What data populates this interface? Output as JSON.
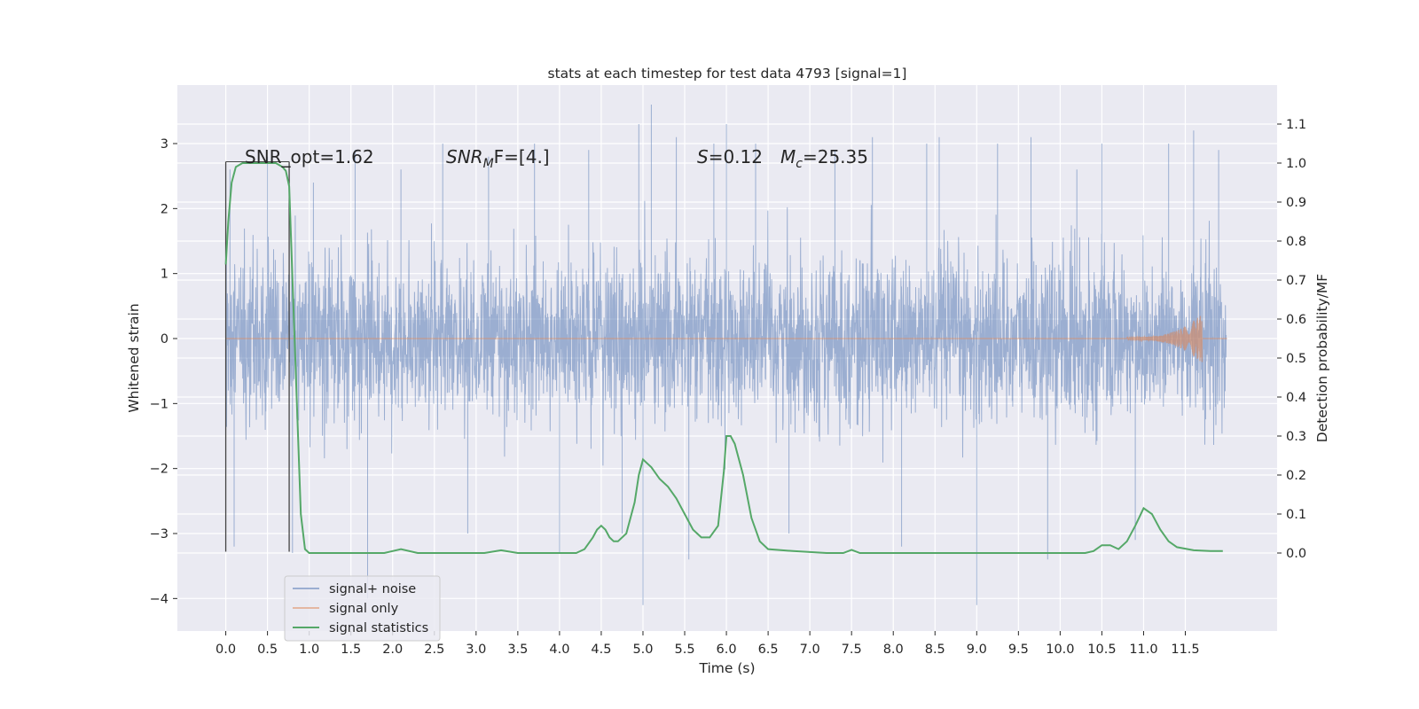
{
  "chart_data": {
    "type": "line",
    "title": "stats at each timestep for test data 4793 [signal=1]",
    "xlabel": "Time (s)",
    "ylabel": "Whitened strain",
    "y2label": "Detection probability/MF",
    "xlim": [
      -0.58,
      12.6
    ],
    "ylim": [
      -4.5,
      3.9
    ],
    "y2lim": [
      -0.2,
      1.2
    ],
    "xticks": [
      0.0,
      0.5,
      1.0,
      1.5,
      2.0,
      2.5,
      3.0,
      3.5,
      4.0,
      4.5,
      5.0,
      5.5,
      6.0,
      6.5,
      7.0,
      7.5,
      8.0,
      8.5,
      9.0,
      9.5,
      10.0,
      10.5,
      11.0,
      11.5
    ],
    "xtick_labels": [
      "0.0",
      "0.5",
      "1.0",
      "1.5",
      "2.0",
      "2.5",
      "3.0",
      "3.5",
      "4.0",
      "4.5",
      "5.0",
      "5.5",
      "6.0",
      "6.5",
      "7.0",
      "7.5",
      "8.0",
      "8.5",
      "9.0",
      "9.5",
      "10.0",
      "10.5",
      "11.0",
      "11.5"
    ],
    "yticks": [
      -4,
      -3,
      -2,
      -1,
      0,
      1,
      2,
      3
    ],
    "ytick_labels": [
      "−4",
      "−3",
      "−2",
      "−1",
      "0",
      "1",
      "2",
      "3"
    ],
    "y2ticks": [
      0.0,
      0.1,
      0.2,
      0.3,
      0.4,
      0.5,
      0.6,
      0.7,
      0.8,
      0.9,
      1.0,
      1.1
    ],
    "y2tick_labels": [
      "0.0",
      "0.1",
      "0.2",
      "0.3",
      "0.4",
      "0.5",
      "0.6",
      "0.7",
      "0.8",
      "0.9",
      "1.0",
      "1.1"
    ],
    "grid": true,
    "legend_position": "lower-left",
    "background_color": "#eaeaf2",
    "annotations": {
      "snr_opt": "SNR_opt=1.62",
      "snr_mf_prefix": "SNR",
      "snr_mf_sub": "M",
      "snr_mf_suffix": "F=[4.]",
      "s_prefix": "S",
      "s_value": "=0.12",
      "mc_prefix": "M",
      "mc_sub": "c",
      "mc_value": "=25.35"
    },
    "series": [
      {
        "name": "signal+ noise",
        "color": "#4c72b0",
        "axis": "left",
        "description": "dense noisy strain time series, mostly within ±1.5 with spikes to about ±3.5",
        "envelope_peaks": [
          [
            0.05,
            2.6
          ],
          [
            0.1,
            -3.2
          ],
          [
            0.5,
            2.8
          ],
          [
            0.8,
            -3.3
          ],
          [
            1.05,
            2.4
          ],
          [
            1.55,
            2.9
          ],
          [
            1.7,
            -4.0
          ],
          [
            2.1,
            2.6
          ],
          [
            2.6,
            3.0
          ],
          [
            2.9,
            -3.0
          ],
          [
            3.15,
            2.8
          ],
          [
            3.7,
            3.0
          ],
          [
            4.0,
            -3.3
          ],
          [
            4.35,
            2.9
          ],
          [
            4.75,
            -3.0
          ],
          [
            4.95,
            3.3
          ],
          [
            5.0,
            -4.1
          ],
          [
            5.1,
            3.6
          ],
          [
            5.4,
            3.1
          ],
          [
            5.55,
            -3.4
          ],
          [
            5.85,
            3.0
          ],
          [
            6.0,
            3.3
          ],
          [
            6.35,
            3.0
          ],
          [
            6.75,
            -3.0
          ],
          [
            7.3,
            2.9
          ],
          [
            7.75,
            3.1
          ],
          [
            8.1,
            -3.2
          ],
          [
            8.4,
            3.0
          ],
          [
            8.55,
            3.1
          ],
          [
            9.0,
            -4.1
          ],
          [
            9.25,
            3.0
          ],
          [
            9.65,
            3.1
          ],
          [
            9.85,
            -3.4
          ],
          [
            10.2,
            2.6
          ],
          [
            10.5,
            3.0
          ],
          [
            10.9,
            -3.1
          ],
          [
            11.3,
            3.0
          ],
          [
            11.6,
            3.2
          ],
          [
            11.9,
            2.9
          ]
        ]
      },
      {
        "name": "signal only",
        "color": "#dd8452",
        "axis": "left",
        "description": "near zero until a chirp near 11.6 s reaching about ±0.35",
        "points": [
          [
            0.0,
            0.0
          ],
          [
            10.8,
            0.0
          ],
          [
            11.2,
            0.05
          ],
          [
            11.5,
            0.15
          ],
          [
            11.65,
            0.35
          ],
          [
            11.7,
            -0.38
          ],
          [
            11.72,
            0.0
          ],
          [
            12.0,
            0.0
          ]
        ]
      },
      {
        "name": "signal statistics",
        "color": "#55a868",
        "axis": "right",
        "x": [
          0.0,
          0.03,
          0.07,
          0.12,
          0.2,
          0.3,
          0.45,
          0.6,
          0.68,
          0.72,
          0.76,
          0.8,
          0.85,
          0.9,
          0.95,
          1.0,
          1.2,
          1.6,
          1.9,
          2.0,
          2.1,
          2.3,
          2.8,
          3.1,
          3.3,
          3.5,
          3.9,
          4.2,
          4.3,
          4.4,
          4.45,
          4.5,
          4.55,
          4.6,
          4.65,
          4.7,
          4.8,
          4.9,
          4.95,
          5.0,
          5.05,
          5.1,
          5.2,
          5.3,
          5.4,
          5.5,
          5.6,
          5.7,
          5.8,
          5.9,
          5.97,
          6.0,
          6.05,
          6.1,
          6.2,
          6.3,
          6.4,
          6.5,
          6.8,
          7.2,
          7.4,
          7.5,
          7.6,
          7.8,
          8.5,
          9.5,
          10.0,
          10.3,
          10.4,
          10.5,
          10.6,
          10.7,
          10.8,
          10.9,
          11.0,
          11.1,
          11.2,
          11.3,
          11.4,
          11.6,
          11.8,
          11.95
        ],
        "y": [
          0.74,
          0.85,
          0.95,
          0.99,
          1.0,
          1.0,
          1.0,
          1.0,
          0.99,
          0.98,
          0.94,
          0.7,
          0.4,
          0.1,
          0.01,
          0.0,
          0.0,
          0.0,
          0.0,
          0.005,
          0.01,
          0.0,
          0.0,
          0.0,
          0.007,
          0.0,
          0.0,
          0.0,
          0.01,
          0.04,
          0.06,
          0.07,
          0.06,
          0.04,
          0.03,
          0.03,
          0.05,
          0.13,
          0.2,
          0.24,
          0.23,
          0.22,
          0.19,
          0.17,
          0.14,
          0.1,
          0.06,
          0.04,
          0.04,
          0.07,
          0.21,
          0.3,
          0.3,
          0.28,
          0.2,
          0.09,
          0.03,
          0.01,
          0.005,
          0.0,
          0.0,
          0.008,
          0.0,
          0.0,
          0.0,
          0.0,
          0.0,
          0.0,
          0.005,
          0.02,
          0.02,
          0.01,
          0.03,
          0.07,
          0.115,
          0.1,
          0.06,
          0.03,
          0.015,
          0.007,
          0.005,
          0.005
        ]
      }
    ]
  }
}
